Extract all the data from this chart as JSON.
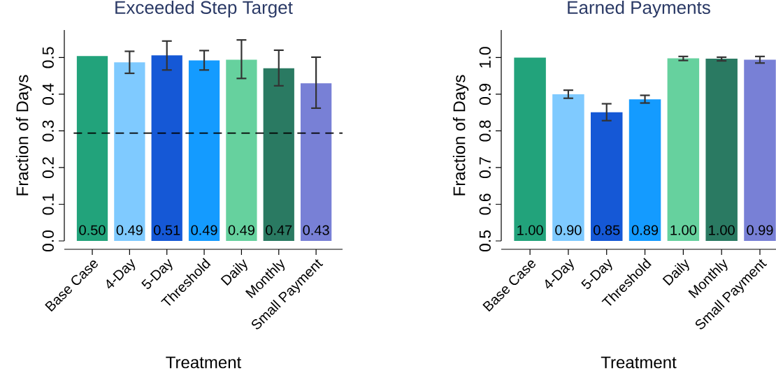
{
  "chart_data": [
    {
      "type": "bar",
      "title": "Exceeded Step Target",
      "xlabel": "Treatment",
      "ylabel": "Fraction of Days",
      "categories": [
        "Base Case",
        "4-Day",
        "5-Day",
        "Threshold",
        "Daily",
        "Monthly",
        "Small Payment"
      ],
      "colors": [
        "#22a37b",
        "#7fcaff",
        "#1558d6",
        "#149bff",
        "#66d19e",
        "#2a7a62",
        "#7880d6"
      ],
      "values": [
        0.504,
        0.487,
        0.506,
        0.492,
        0.494,
        0.471,
        0.43
      ],
      "value_labels": [
        "0.50",
        "0.49",
        "0.51",
        "0.49",
        "0.49",
        "0.47",
        "0.43"
      ],
      "errors": [
        null,
        [
          0.457,
          0.517
        ],
        [
          0.466,
          0.545
        ],
        [
          0.466,
          0.519
        ],
        [
          0.443,
          0.548
        ],
        [
          0.423,
          0.52
        ],
        [
          0.362,
          0.501
        ]
      ],
      "ylim": [
        0,
        0.575
      ],
      "yticks": [
        {
          "value": 0,
          "label": "0.0"
        },
        0.1,
        0.2,
        0.3,
        0.4,
        0.5
      ],
      "ref_lines": [
        {
          "axis": "y",
          "value": 0.294,
          "line_style": "dashed",
          "color": "#000000"
        }
      ]
    },
    {
      "type": "bar",
      "title": "Earned Payments",
      "xlabel": "Treatment",
      "ylabel": "Fraction of Days",
      "categories": [
        "Base Case",
        "4-Day",
        "5-Day",
        "Threshold",
        "Daily",
        "Monthly",
        "Small Payment"
      ],
      "colors": [
        "#22a37b",
        "#7fcaff",
        "#1558d6",
        "#149bff",
        "#66d19e",
        "#2a7a62",
        "#7880d6"
      ],
      "values": [
        1.0,
        0.9,
        0.851,
        0.886,
        0.998,
        0.997,
        0.994
      ],
      "value_labels": [
        "1.00",
        "0.90",
        "0.85",
        "0.89",
        "1.00",
        "1.00",
        "0.99"
      ],
      "errors": [
        null,
        [
          0.889,
          0.911
        ],
        [
          0.828,
          0.874
        ],
        [
          0.876,
          0.897
        ],
        [
          0.992,
          1.003
        ],
        [
          0.991,
          1.001
        ],
        [
          0.985,
          1.003
        ]
      ],
      "ylim": [
        0.5,
        1.075
      ],
      "yticks": [
        0.5,
        0.6,
        0.7,
        0.8,
        0.9,
        {
          "value": 1,
          "label": "1.0"
        }
      ]
    }
  ]
}
